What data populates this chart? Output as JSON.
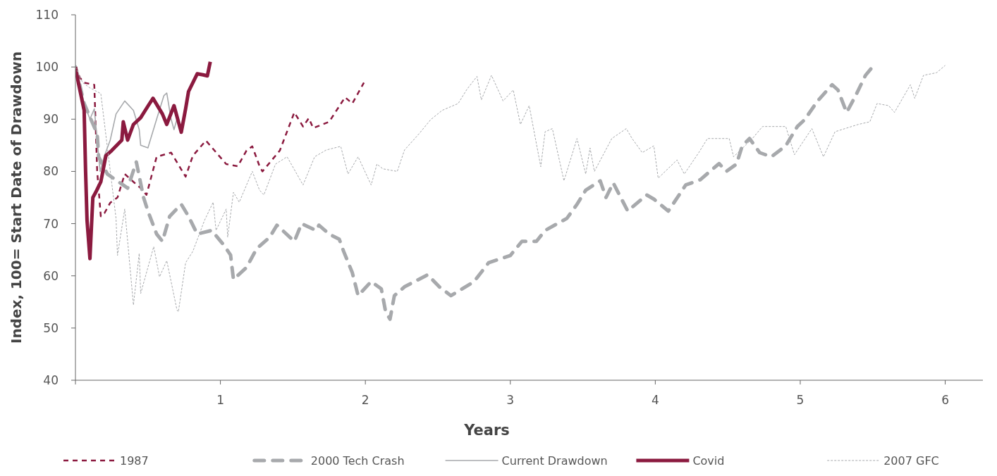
{
  "chart_data": {
    "type": "line",
    "xlabel": "Years",
    "ylabel": "Index, 100= Start Date of Drawdown",
    "xlim": [
      0,
      6.26
    ],
    "xticks": [
      {
        "value": 0,
        "label": null
      },
      1,
      2,
      3,
      4,
      5,
      6
    ],
    "ylim": [
      40,
      110
    ],
    "yticks": [
      40,
      50,
      60,
      70,
      80,
      90,
      100,
      110
    ],
    "grid": false,
    "legend": "bottom",
    "marker": "none",
    "series": [
      {
        "name": "1987",
        "color": "#8b1a3f",
        "line_style": "dashed",
        "x": [
          0,
          0.03,
          0.06,
          0.13,
          0.15,
          0.175,
          0.2,
          0.24,
          0.29,
          0.34,
          0.4,
          0.45,
          0.49,
          0.56,
          0.66,
          0.76,
          0.81,
          0.9,
          1.04,
          1.12,
          1.18,
          1.22,
          1.27,
          1.29,
          1.41,
          1.51,
          1.57,
          1.61,
          1.64,
          1.75,
          1.86,
          1.91,
          1.99
        ],
        "values": [
          100,
          98,
          97,
          96.6,
          80,
          71.4,
          72,
          74,
          75,
          79.5,
          78,
          76.8,
          75.5,
          82.8,
          83.6,
          79,
          83,
          85.9,
          81.4,
          81,
          84,
          84.8,
          81,
          80,
          84,
          91.3,
          88.6,
          90.2,
          88.3,
          89.5,
          94.2,
          93,
          97
        ]
      },
      {
        "name": "2000 Tech Crash",
        "color": "#a7a9ac",
        "line_style": "dashed",
        "x": [
          0,
          0.06,
          0.15,
          0.16,
          0.22,
          0.36,
          0.42,
          0.47,
          0.5,
          0.56,
          0.6,
          0.65,
          0.73,
          0.78,
          0.84,
          0.94,
          1.02,
          1.07,
          1.09,
          1.18,
          1.25,
          1.34,
          1.39,
          1.51,
          1.56,
          1.66,
          1.68,
          1.75,
          1.82,
          1.85,
          1.91,
          1.95,
          2.04,
          2.11,
          2.14,
          2.17,
          2.2,
          2.27,
          2.43,
          2.51,
          2.59,
          2.75,
          2.85,
          3.0,
          3.08,
          3.18,
          3.24,
          3.39,
          3.46,
          3.52,
          3.62,
          3.66,
          3.71,
          3.81,
          3.94,
          3.99,
          4.09,
          4.21,
          4.31,
          4.44,
          4.49,
          4.56,
          4.6,
          4.65,
          4.72,
          4.8,
          4.9,
          4.98,
          5.03,
          5.12,
          5.22,
          5.26,
          5.32,
          5.38,
          5.45,
          5.51
        ],
        "values": [
          100,
          93,
          87.2,
          82.8,
          79.5,
          76.8,
          81.8,
          75,
          72.4,
          68,
          66.6,
          71.4,
          73.7,
          71.4,
          68,
          68.7,
          66,
          64,
          59.3,
          61.6,
          65.2,
          67.4,
          69.7,
          66.6,
          70,
          68.7,
          69.7,
          68,
          67,
          64.7,
          60.6,
          56.2,
          58.9,
          57.5,
          53.1,
          51.7,
          56.2,
          57.9,
          60.2,
          57.9,
          56.2,
          58.9,
          62.5,
          63.9,
          66.6,
          66.6,
          68.7,
          71,
          73.7,
          76.4,
          78.2,
          75,
          77.8,
          72.4,
          75.5,
          74.7,
          72.4,
          77.4,
          78.4,
          81.5,
          80,
          81.4,
          84.9,
          86.3,
          83.6,
          82.8,
          84.9,
          88.6,
          89.9,
          93.5,
          96.6,
          95.6,
          91.3,
          94.4,
          98.4,
          100.4
        ]
      },
      {
        "name": "Current Drawdown",
        "color": "#a7a9ac",
        "line_style": "solid",
        "x": [
          0,
          0.03,
          0.06,
          0.1,
          0.13,
          0.17,
          0.2,
          0.24,
          0.28,
          0.34,
          0.4,
          0.44,
          0.45,
          0.5,
          0.56,
          0.61,
          0.63,
          0.66,
          0.68,
          0.7
        ],
        "values": [
          100,
          97,
          93,
          90,
          92,
          80,
          83,
          86,
          91,
          93.5,
          91.7,
          88,
          85,
          84.5,
          90,
          94.5,
          95,
          90,
          88,
          90
        ]
      },
      {
        "name": "Covid",
        "color": "#8b1a3f",
        "line_style": "solid",
        "x": [
          0,
          0.02,
          0.06,
          0.07,
          0.08,
          0.1,
          0.12,
          0.14,
          0.175,
          0.21,
          0.25,
          0.32,
          0.33,
          0.36,
          0.4,
          0.45,
          0.5,
          0.535,
          0.6,
          0.63,
          0.68,
          0.73,
          0.76,
          0.78,
          0.84,
          0.88,
          0.91,
          0.93
        ],
        "values": [
          100,
          97,
          91.7,
          80,
          70.6,
          63.3,
          75,
          76,
          78,
          83,
          84,
          86,
          89.5,
          86,
          89,
          90.3,
          92.5,
          94,
          91,
          89,
          92.6,
          87.5,
          92,
          95.3,
          98.7,
          98.5,
          98.3,
          101
        ]
      },
      {
        "name": "2007 GFC",
        "color": "#a7a9ac",
        "line_style": "dotted",
        "x": [
          0,
          0.05,
          0.1,
          0.175,
          0.28,
          0.29,
          0.34,
          0.4,
          0.44,
          0.45,
          0.54,
          0.58,
          0.63,
          0.7,
          0.71,
          0.76,
          0.81,
          0.89,
          0.95,
          0.97,
          1.04,
          1.05,
          1.09,
          1.13,
          1.22,
          1.27,
          1.3,
          1.38,
          1.46,
          1.57,
          1.65,
          1.73,
          1.83,
          1.88,
          1.95,
          2.04,
          2.08,
          2.12,
          2.22,
          2.27,
          2.37,
          2.45,
          2.53,
          2.64,
          2.7,
          2.77,
          2.8,
          2.87,
          2.95,
          3.02,
          3.07,
          3.13,
          3.21,
          3.24,
          3.29,
          3.37,
          3.46,
          3.52,
          3.55,
          3.58,
          3.7,
          3.8,
          3.84,
          3.91,
          3.99,
          4.02,
          4.15,
          4.2,
          4.3,
          4.36,
          4.51,
          4.54,
          4.67,
          4.74,
          4.9,
          4.96,
          5.08,
          5.16,
          5.24,
          5.4,
          5.48,
          5.53,
          5.61,
          5.65,
          5.76,
          5.79,
          5.85,
          5.94,
          6.0
        ],
        "values": [
          100,
          97,
          96,
          94.9,
          71,
          63.9,
          72.8,
          54.4,
          64.3,
          56.6,
          65.6,
          59.8,
          62.9,
          53.5,
          53.1,
          62.5,
          64.7,
          70.6,
          74.1,
          68.7,
          72.8,
          67.4,
          76,
          74.1,
          80,
          76.4,
          75.5,
          81.4,
          82.8,
          77.4,
          82.8,
          84.1,
          84.8,
          79.5,
          82.8,
          77.4,
          81.4,
          80.5,
          80,
          84.1,
          87.2,
          89.9,
          91.7,
          93,
          95.7,
          98.2,
          93.7,
          98.4,
          93.5,
          95.6,
          89,
          92.6,
          80.9,
          87.6,
          88.2,
          78.2,
          86.3,
          79.5,
          84.5,
          80,
          86.3,
          88.2,
          86.3,
          83.6,
          84.9,
          78.7,
          82.2,
          79.5,
          83.6,
          86.3,
          86.3,
          82.8,
          86.3,
          88.6,
          88.6,
          83.2,
          88.2,
          82.8,
          87.6,
          89,
          89.5,
          93,
          92.6,
          91.3,
          96.6,
          94,
          98.4,
          98.9,
          100.3
        ]
      }
    ]
  }
}
